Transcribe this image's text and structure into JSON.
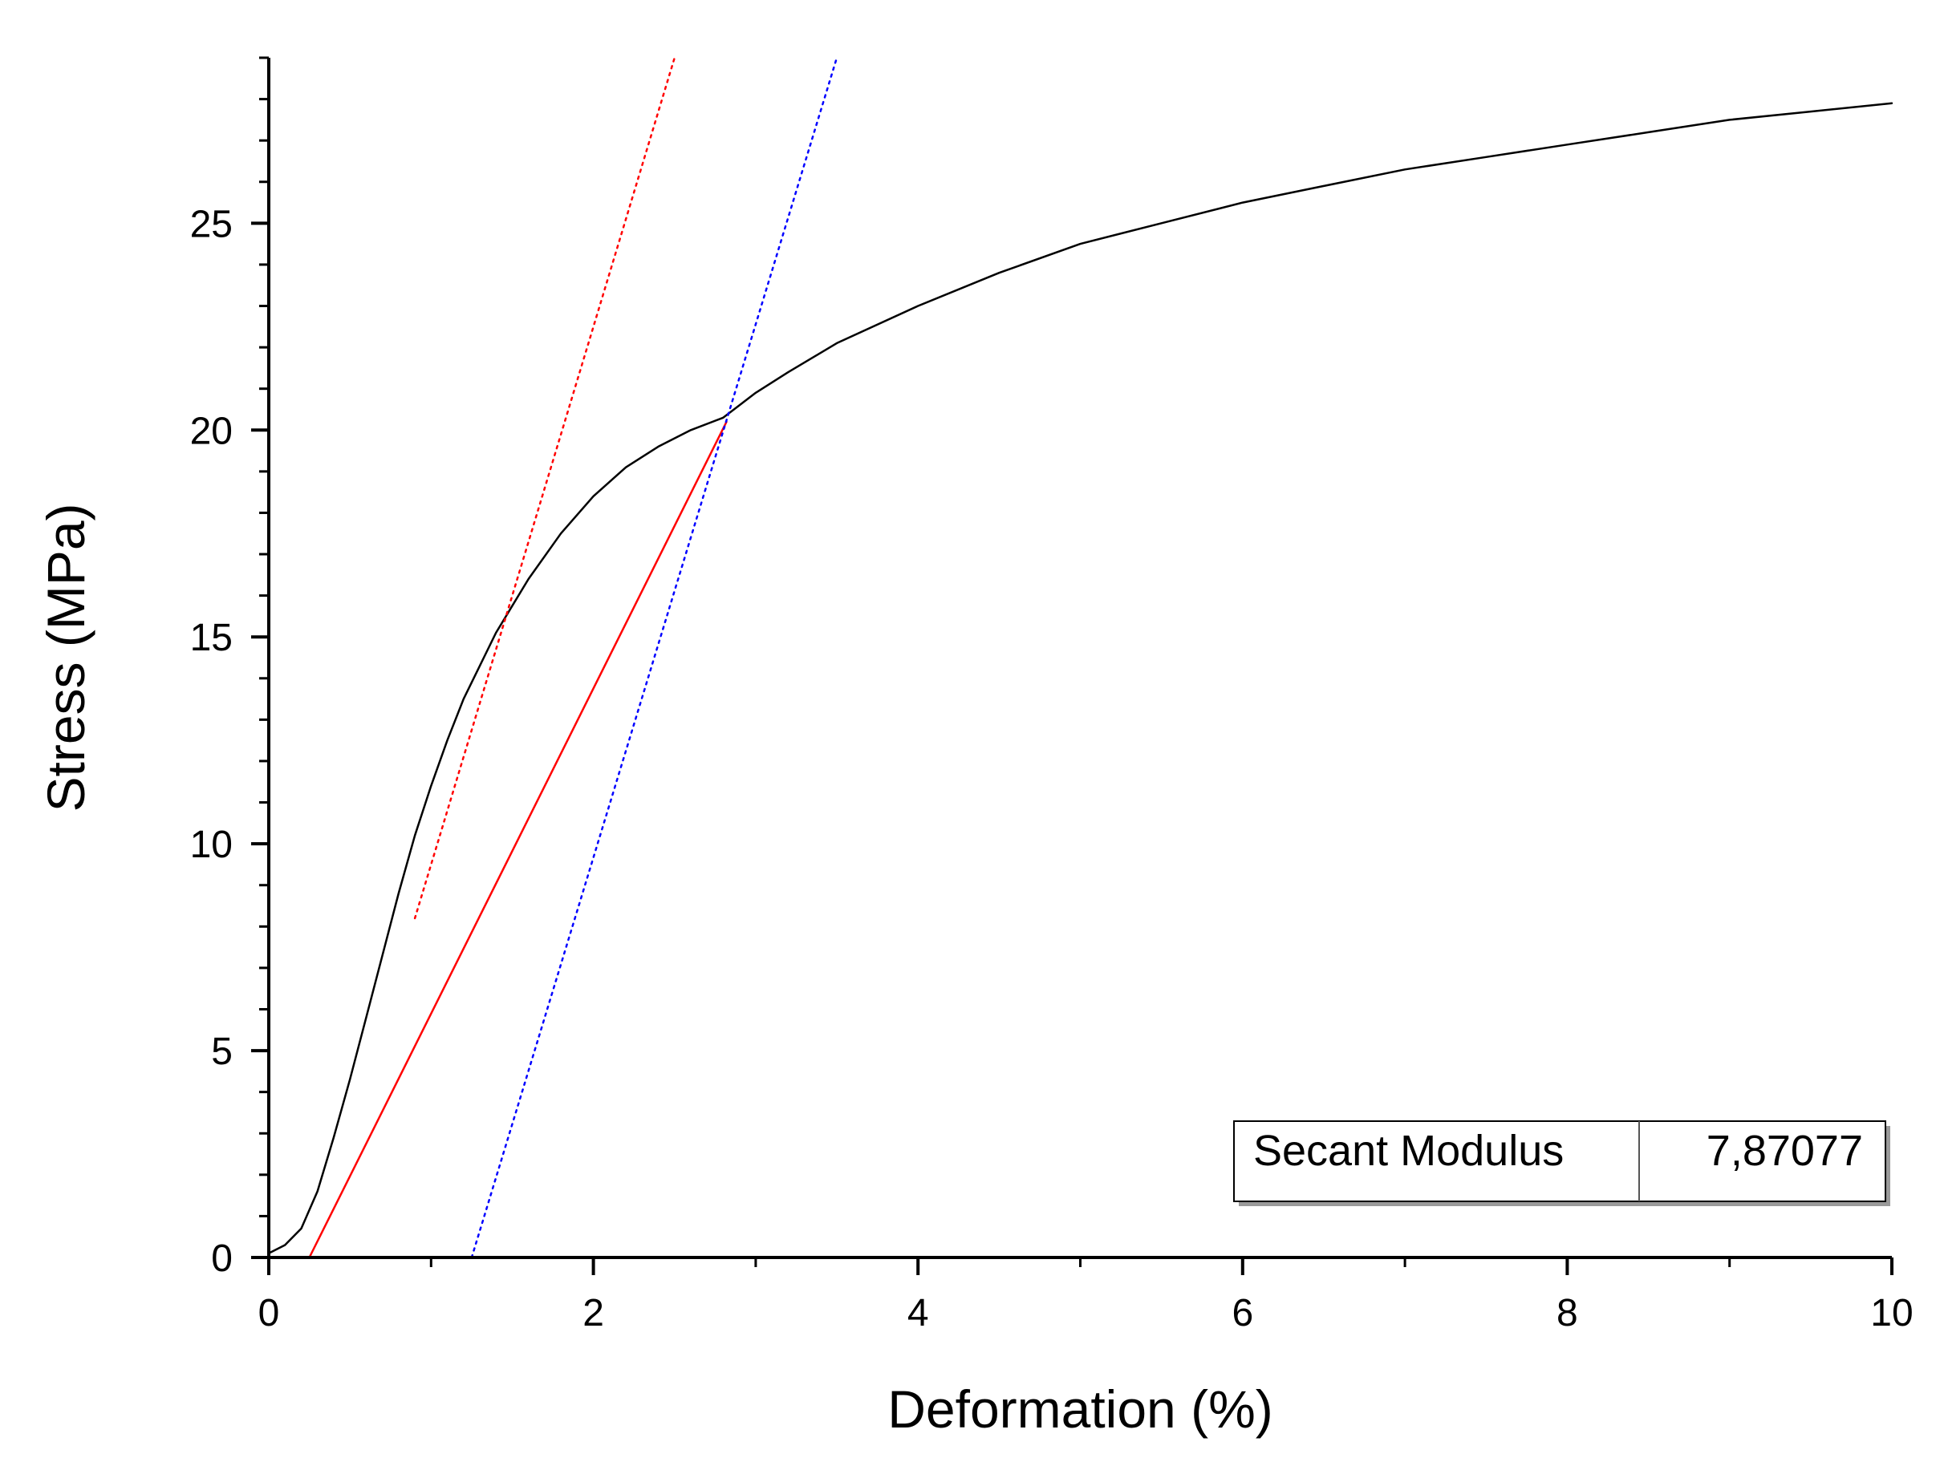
{
  "chart_data": {
    "type": "line",
    "xlabel": "Deformation (%)",
    "ylabel": "Stress (MPa)",
    "xlim": [
      0,
      10
    ],
    "ylim": [
      0,
      29
    ],
    "x_ticks": [
      0,
      2,
      4,
      6,
      8,
      10
    ],
    "x_minor_step": 1,
    "y_ticks": [
      0,
      5,
      10,
      15,
      20,
      25
    ],
    "y_minor_step": 1,
    "grid": false,
    "legend": "none",
    "series": [
      {
        "style": "solid",
        "color": "#000000",
        "points": [
          [
            0,
            0.1
          ],
          [
            0.1,
            0.3
          ],
          [
            0.2,
            0.7
          ],
          [
            0.3,
            1.6
          ],
          [
            0.4,
            2.9
          ],
          [
            0.5,
            4.3
          ],
          [
            0.6,
            5.8
          ],
          [
            0.7,
            7.3
          ],
          [
            0.8,
            8.8
          ],
          [
            0.9,
            10.2
          ],
          [
            1.0,
            11.4
          ],
          [
            1.1,
            12.5
          ],
          [
            1.2,
            13.5
          ],
          [
            1.4,
            15.1
          ],
          [
            1.6,
            16.4
          ],
          [
            1.8,
            17.5
          ],
          [
            2.0,
            18.4
          ],
          [
            2.2,
            19.1
          ],
          [
            2.4,
            19.6
          ],
          [
            2.6,
            20.0
          ],
          [
            2.8,
            20.3
          ],
          [
            3.0,
            20.9
          ],
          [
            3.2,
            21.4
          ],
          [
            3.5,
            22.1
          ],
          [
            4.0,
            23.0
          ],
          [
            4.5,
            23.8
          ],
          [
            5.0,
            24.5
          ],
          [
            5.5,
            25.0
          ],
          [
            6.0,
            25.5
          ],
          [
            6.5,
            25.9
          ],
          [
            7.0,
            26.3
          ],
          [
            7.5,
            26.6
          ],
          [
            8.0,
            26.9
          ],
          [
            8.5,
            27.2
          ],
          [
            9.0,
            27.5
          ],
          [
            9.5,
            27.7
          ],
          [
            10.0,
            27.9
          ]
        ]
      },
      {
        "style": "solid",
        "color": "#ff0000",
        "points": [
          [
            0.25,
            0
          ],
          [
            2.82,
            20.2
          ]
        ]
      },
      {
        "style": "dotted",
        "color": "#ff0000",
        "points": [
          [
            0.9,
            8.2
          ],
          [
            2.5,
            29
          ]
        ]
      },
      {
        "style": "dotted",
        "color": "#0000ff",
        "points": [
          [
            1.25,
            0
          ],
          [
            3.5,
            29
          ]
        ]
      }
    ],
    "annotation": {
      "label": "Secant Modulus",
      "value": "7,87077"
    }
  }
}
